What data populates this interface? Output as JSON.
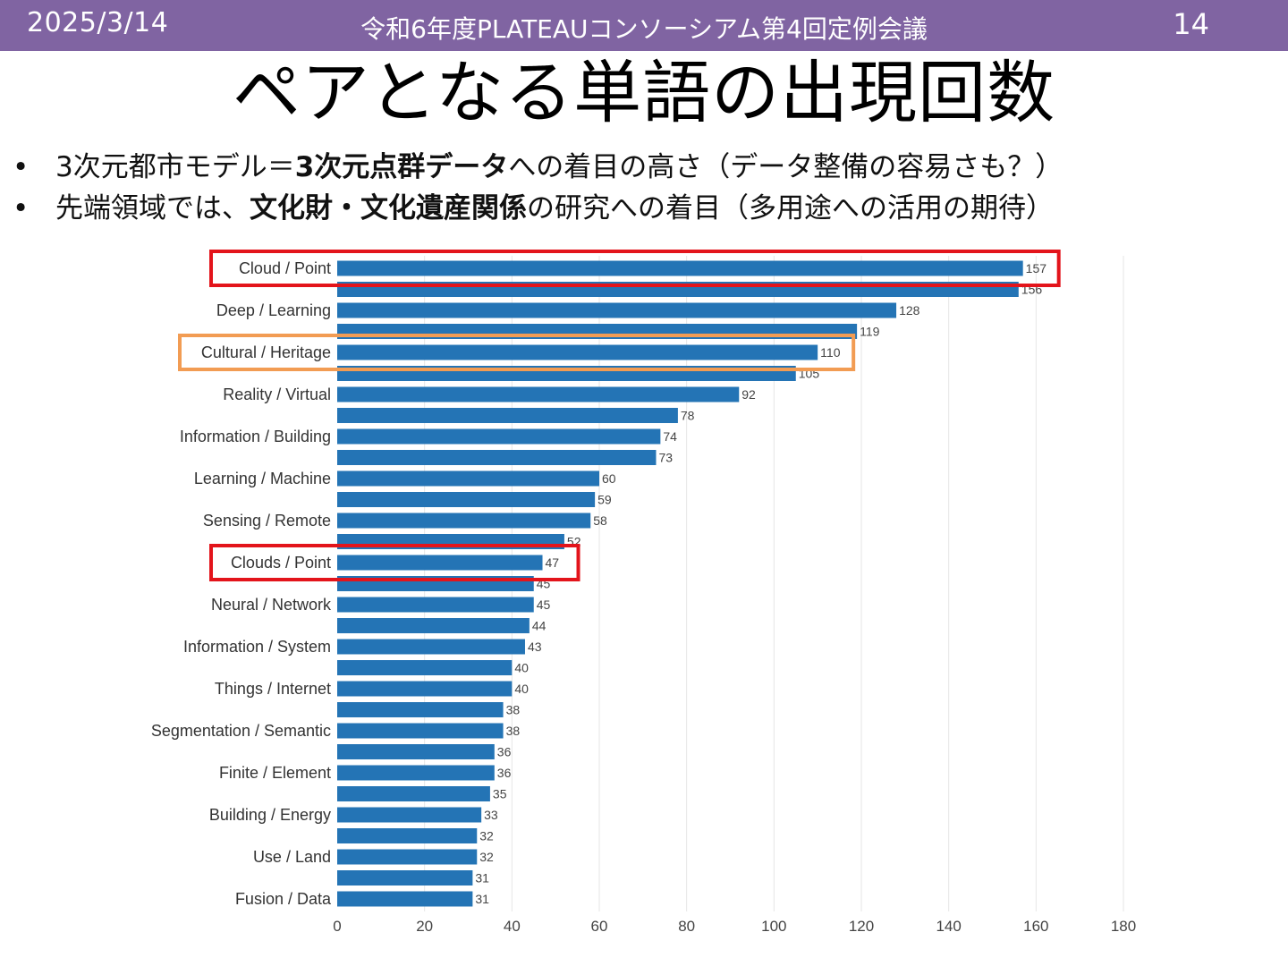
{
  "header": {
    "date": "2025/3/14",
    "title": "令和6年度PLATEAUコンソーシアム第4回定例会議",
    "page_number": "14"
  },
  "slide": {
    "title": "ペアとなる単語の出現回数",
    "bullets": [
      {
        "bullet": "•",
        "pre": "3次元都市モデル＝",
        "bold": "3次元点群データ",
        "post": "への着目の高さ（データ整備の容易さも？）"
      },
      {
        "bullet": "•",
        "pre": "先端領域では、",
        "bold": "文化財・文化遺産関係",
        "post": "の研究への着目（多用途への活用の期待）"
      }
    ]
  },
  "colors": {
    "header_bg": "#8064a2",
    "bar": "#2474b5",
    "highlight_red": "#e3141b",
    "highlight_orange": "#f29c53",
    "grid": "#e6e6e6"
  },
  "chart_data": {
    "type": "bar",
    "orientation": "horizontal",
    "title": "",
    "xlabel": "",
    "ylabel": "",
    "xlim": [
      0,
      180
    ],
    "xticks": [
      0,
      20,
      40,
      60,
      80,
      100,
      120,
      140,
      160,
      180
    ],
    "grid": true,
    "categories": [
      "Cloud / Point",
      "",
      "Deep / Learning",
      "",
      "Cultural / Heritage",
      "",
      "Reality / Virtual",
      "",
      "Information / Building",
      "",
      "Learning / Machine",
      "",
      "Sensing / Remote",
      "",
      "Clouds / Point",
      "",
      "Neural / Network",
      "",
      "Information / System",
      "",
      "Things / Internet",
      "",
      "Segmentation / Semantic",
      "",
      "Finite / Element",
      "",
      "Building / Energy",
      "",
      "Use / Land",
      "",
      "Fusion / Data"
    ],
    "values": [
      157,
      156,
      128,
      119,
      110,
      105,
      92,
      78,
      74,
      73,
      60,
      59,
      58,
      52,
      47,
      45,
      45,
      44,
      43,
      40,
      40,
      38,
      38,
      36,
      36,
      35,
      33,
      32,
      32,
      31,
      31
    ],
    "highlights": [
      {
        "category": "Cloud / Point",
        "color": "red"
      },
      {
        "category": "Cultural / Heritage",
        "color": "orange"
      },
      {
        "category": "Clouds / Point",
        "color": "red"
      }
    ]
  }
}
